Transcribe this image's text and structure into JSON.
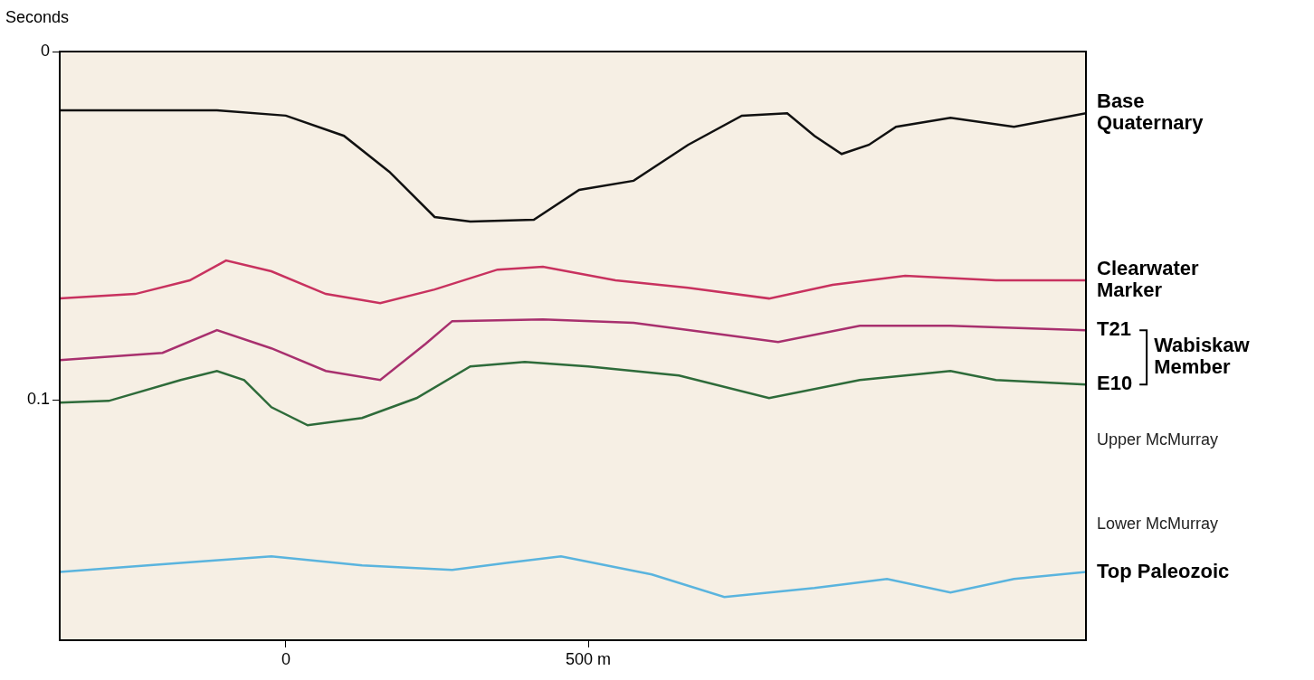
{
  "chart_data": {
    "type": "line",
    "y_label": "Seconds",
    "xlim": [
      -374,
      1323
    ],
    "xticks": [
      0,
      {
        "value": 500,
        "label": "500 m"
      }
    ],
    "ylim": [
      0.169,
      0
    ],
    "yticks": [
      0,
      0.1
    ],
    "grid": false,
    "series": [
      {
        "name": "Base Quaternary",
        "color": "#111111",
        "x": [
          -374,
          -174,
          -114,
          0,
          96,
          171,
          246,
          305,
          410,
          485,
          575,
          665,
          754,
          829,
          874,
          919,
          964,
          1009,
          1099,
          1204,
          1323
        ],
        "values": [
          0.0169,
          0.0169,
          0.0169,
          0.0184,
          0.0242,
          0.0345,
          0.0475,
          0.0488,
          0.0483,
          0.0397,
          0.0371,
          0.0268,
          0.0184,
          0.0177,
          0.0242,
          0.0294,
          0.0268,
          0.0216,
          0.019,
          0.0216,
          0.0177
        ]
      },
      {
        "name": "Clearwater Marker",
        "color": "#c8325f",
        "x": [
          -374,
          -249,
          -159,
          -99,
          -24,
          66,
          156,
          246,
          350,
          425,
          545,
          665,
          799,
          904,
          1024,
          1174,
          1323
        ],
        "values": [
          0.0709,
          0.0696,
          0.0657,
          0.06,
          0.0631,
          0.0696,
          0.0722,
          0.0683,
          0.0626,
          0.0618,
          0.0657,
          0.0678,
          0.0709,
          0.067,
          0.0644,
          0.0657,
          0.0657
        ]
      },
      {
        "name": "T21",
        "color": "#a8306e",
        "x": [
          -374,
          -204,
          -114,
          -24,
          66,
          156,
          231,
          275,
          425,
          575,
          725,
          814,
          949,
          1099,
          1323
        ],
        "values": [
          0.0886,
          0.0865,
          0.08,
          0.0852,
          0.0917,
          0.0943,
          0.0839,
          0.0774,
          0.0769,
          0.0779,
          0.0813,
          0.0834,
          0.0787,
          0.0787,
          0.08
        ]
      },
      {
        "name": "E10",
        "color": "#2e6b3a",
        "x": [
          -374,
          -293,
          -174,
          -114,
          -69,
          -24,
          36,
          126,
          216,
          305,
          395,
          500,
          650,
          799,
          949,
          1099,
          1174,
          1323
        ],
        "values": [
          0.1008,
          0.1003,
          0.0943,
          0.0917,
          0.0943,
          0.1021,
          0.1073,
          0.1052,
          0.0995,
          0.0904,
          0.0891,
          0.0904,
          0.093,
          0.0995,
          0.0943,
          0.0917,
          0.0943,
          0.0956
        ]
      },
      {
        "name": "Top Paleozoic",
        "color": "#5ab4de",
        "x": [
          -374,
          -174,
          -24,
          126,
          275,
          365,
          455,
          605,
          725,
          874,
          994,
          1099,
          1204,
          1323
        ],
        "values": [
          0.1494,
          0.1468,
          0.1449,
          0.1475,
          0.1488,
          0.1468,
          0.1449,
          0.1501,
          0.1566,
          0.154,
          0.1514,
          0.1553,
          0.1514,
          0.1494
        ]
      }
    ],
    "annotations": [
      {
        "text": "Wabiskaw Member",
        "span": [
          "T21",
          "E10"
        ]
      },
      {
        "text": "Upper McMurray",
        "y": 0.1117
      },
      {
        "text": "Lower McMurray",
        "y": 0.1358
      }
    ]
  }
}
